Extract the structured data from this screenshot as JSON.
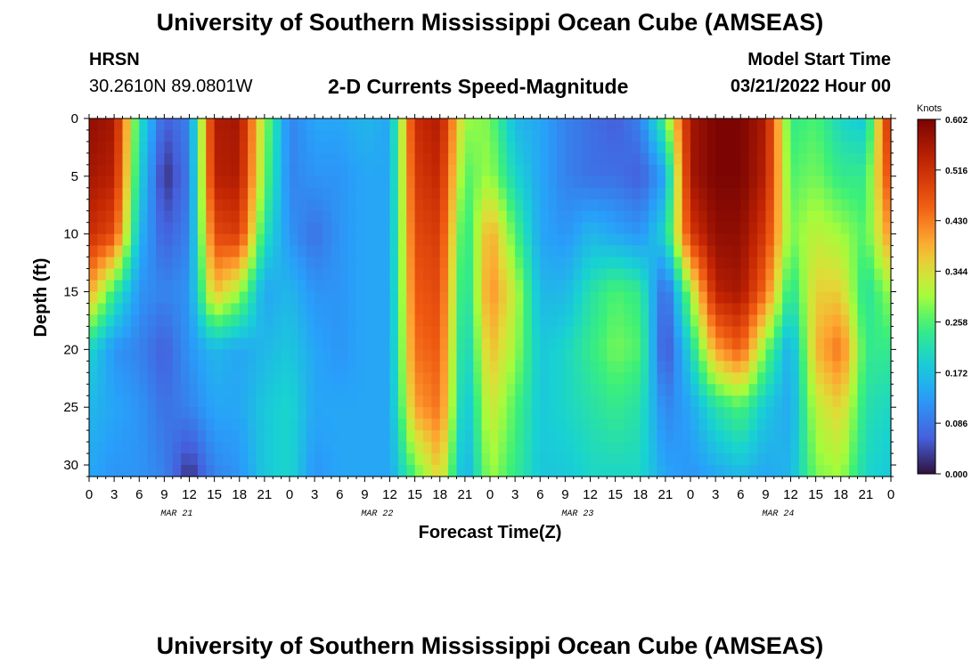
{
  "header": {
    "title": "University of Southern Mississippi Ocean Cube (AMSEAS)",
    "station": "HRSN",
    "coords": "30.2610N  89.0801W",
    "subtitle": "2-D Currents Speed-Magnitude",
    "model_label": "Model Start Time",
    "model_time": "03/21/2022 Hour 00"
  },
  "footer": {
    "title": "University of Southern Mississippi Ocean Cube (AMSEAS)"
  },
  "chart_data": {
    "type": "heatmap",
    "title": "2-D Currents Speed-Magnitude",
    "xlabel": "Forecast Time(Z)",
    "ylabel": "Depth (ft)",
    "x_hours_range": [
      0,
      96
    ],
    "x_tick_labels": [
      "0",
      "3",
      "6",
      "9",
      "12",
      "15",
      "18",
      "21",
      "0",
      "3",
      "6",
      "9",
      "12",
      "15",
      "18",
      "21",
      "0",
      "3",
      "6",
      "9",
      "12",
      "15",
      "18",
      "21",
      "0",
      "3",
      "6",
      "9",
      "12",
      "15",
      "18",
      "21",
      "0"
    ],
    "day_labels": [
      "MAR 21",
      "MAR 22",
      "MAR 23",
      "MAR 24"
    ],
    "ylim": [
      0,
      31
    ],
    "y_ticks": [
      0,
      5,
      10,
      15,
      20,
      25,
      30
    ],
    "colorbar": {
      "units": "Knots",
      "min": 0.0,
      "max": 0.602,
      "tick_labels": [
        "0.602",
        "0.516",
        "0.430",
        "0.344",
        "0.258",
        "0.172",
        "0.086",
        "0.000"
      ]
    },
    "speed_knots_estimated": {
      "depths_ft": [
        0,
        5,
        10,
        15,
        20,
        25,
        31
      ],
      "hours": [
        0,
        3,
        6,
        9,
        12,
        15,
        18,
        21,
        24,
        27,
        30,
        33,
        36,
        39,
        42,
        45,
        48,
        51,
        54,
        57,
        60,
        63,
        66,
        69,
        72,
        75,
        78,
        81,
        84,
        87,
        90,
        93,
        96
      ],
      "rows": [
        [
          0.58,
          0.56,
          0.22,
          0.06,
          0.1,
          0.55,
          0.56,
          0.3,
          0.1,
          0.14,
          0.14,
          0.16,
          0.14,
          0.52,
          0.55,
          0.3,
          0.28,
          0.16,
          0.14,
          0.1,
          0.08,
          0.06,
          0.1,
          0.26,
          0.56,
          0.6,
          0.6,
          0.55,
          0.24,
          0.26,
          0.2,
          0.18,
          0.55
        ],
        [
          0.56,
          0.54,
          0.2,
          0.02,
          0.09,
          0.54,
          0.55,
          0.28,
          0.1,
          0.12,
          0.12,
          0.14,
          0.14,
          0.5,
          0.53,
          0.26,
          0.3,
          0.2,
          0.14,
          0.1,
          0.08,
          0.08,
          0.06,
          0.14,
          0.56,
          0.6,
          0.6,
          0.54,
          0.26,
          0.28,
          0.24,
          0.24,
          0.5
        ],
        [
          0.52,
          0.48,
          0.16,
          0.06,
          0.1,
          0.48,
          0.5,
          0.22,
          0.12,
          0.08,
          0.12,
          0.14,
          0.14,
          0.48,
          0.5,
          0.22,
          0.4,
          0.26,
          0.14,
          0.12,
          0.16,
          0.14,
          0.12,
          0.2,
          0.5,
          0.58,
          0.58,
          0.5,
          0.28,
          0.32,
          0.3,
          0.26,
          0.42
        ],
        [
          0.4,
          0.24,
          0.12,
          0.1,
          0.12,
          0.38,
          0.3,
          0.14,
          0.16,
          0.12,
          0.12,
          0.14,
          0.14,
          0.46,
          0.48,
          0.2,
          0.42,
          0.32,
          0.16,
          0.16,
          0.22,
          0.26,
          0.24,
          0.06,
          0.3,
          0.54,
          0.56,
          0.44,
          0.22,
          0.36,
          0.36,
          0.22,
          0.3
        ],
        [
          0.2,
          0.12,
          0.1,
          0.06,
          0.12,
          0.16,
          0.14,
          0.16,
          0.18,
          0.14,
          0.12,
          0.14,
          0.14,
          0.44,
          0.46,
          0.18,
          0.38,
          0.3,
          0.18,
          0.2,
          0.24,
          0.28,
          0.26,
          0.04,
          0.2,
          0.4,
          0.46,
          0.28,
          0.14,
          0.38,
          0.44,
          0.24,
          0.24
        ],
        [
          0.16,
          0.14,
          0.12,
          0.08,
          0.1,
          0.14,
          0.14,
          0.18,
          0.2,
          0.14,
          0.14,
          0.14,
          0.14,
          0.4,
          0.44,
          0.16,
          0.34,
          0.26,
          0.18,
          0.2,
          0.22,
          0.24,
          0.22,
          0.1,
          0.14,
          0.22,
          0.26,
          0.18,
          0.14,
          0.32,
          0.36,
          0.22,
          0.2
        ],
        [
          0.14,
          0.12,
          0.12,
          0.1,
          0.02,
          0.1,
          0.12,
          0.18,
          0.2,
          0.12,
          0.14,
          0.14,
          0.14,
          0.26,
          0.36,
          0.14,
          0.3,
          0.24,
          0.18,
          0.18,
          0.2,
          0.2,
          0.2,
          0.14,
          0.12,
          0.14,
          0.16,
          0.14,
          0.16,
          0.28,
          0.3,
          0.2,
          0.18
        ]
      ]
    }
  }
}
